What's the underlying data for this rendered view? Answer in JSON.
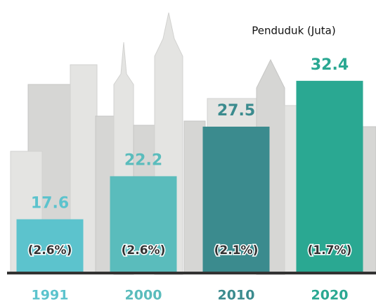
{
  "chart_data": {
    "type": "bar",
    "title": "Penduduk (Juta)",
    "categories": [
      "1991",
      "2000",
      "2010",
      "2020"
    ],
    "values": [
      17.6,
      22.2,
      27.5,
      32.4
    ],
    "annotations": [
      "(2.6%)",
      "(2.6%)",
      "(2.1%)",
      "(1.7%)"
    ],
    "colors": [
      "#5cc3cd",
      "#5abcbc",
      "#3b8b8e",
      "#2aa892"
    ],
    "ylim": [
      12,
      36
    ]
  }
}
